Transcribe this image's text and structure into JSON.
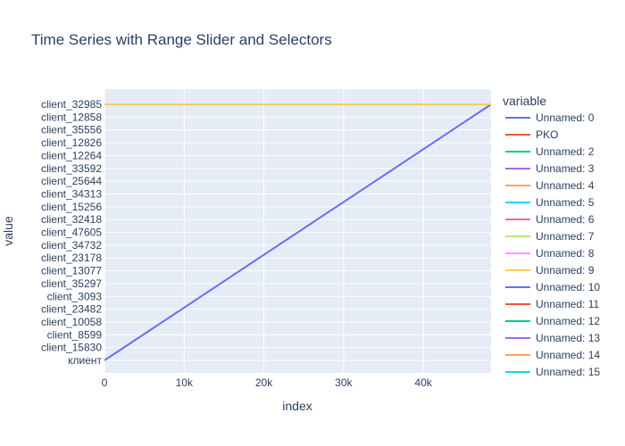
{
  "chart_data": {
    "type": "line",
    "title": "Time Series with Range Slider and Selectors",
    "xlabel": "index",
    "ylabel": "value",
    "xlim": [
      0,
      48500
    ],
    "x_ticks": [
      {
        "value": 0,
        "label": "0"
      },
      {
        "value": 10000,
        "label": "10k"
      },
      {
        "value": 20000,
        "label": "20k"
      },
      {
        "value": 30000,
        "label": "30k"
      },
      {
        "value": 40000,
        "label": "40k"
      }
    ],
    "y_categories": [
      "клиент",
      "client_15830",
      "client_8599",
      "client_10058",
      "client_23482",
      "client_3093",
      "client_35297",
      "client_13077",
      "client_23178",
      "client_34732",
      "client_47605",
      "client_32418",
      "client_15256",
      "client_34313",
      "client_25644",
      "client_33592",
      "client_12264",
      "client_12826",
      "client_35556",
      "client_12858",
      "client_32985"
    ],
    "grid": true,
    "legend": {
      "title": "variable",
      "position": "right"
    },
    "series": [
      {
        "name": "Unnamed: 0",
        "color": "#636efa",
        "x": [
          0,
          48500
        ],
        "y_index": [
          0,
          20
        ]
      },
      {
        "name": "PKO",
        "color": "#EF553B",
        "x": [
          0,
          48500
        ],
        "y_index": [
          20,
          20
        ]
      },
      {
        "name": "Unnamed: 2",
        "color": "#00cc96",
        "x": [
          0,
          48500
        ],
        "y_index": [
          20,
          20
        ]
      },
      {
        "name": "Unnamed: 3",
        "color": "#ab63fa",
        "x": [
          0,
          48500
        ],
        "y_index": [
          20,
          20
        ]
      },
      {
        "name": "Unnamed: 4",
        "color": "#FFA15A",
        "x": [
          0,
          48500
        ],
        "y_index": [
          20,
          20
        ]
      },
      {
        "name": "Unnamed: 5",
        "color": "#19d3f3",
        "x": [
          0,
          48500
        ],
        "y_index": [
          20,
          20
        ]
      },
      {
        "name": "Unnamed: 6",
        "color": "#FF6692",
        "x": [
          0,
          48500
        ],
        "y_index": [
          20,
          20
        ]
      },
      {
        "name": "Unnamed: 7",
        "color": "#B6E880",
        "x": [
          0,
          48500
        ],
        "y_index": [
          20,
          20
        ]
      },
      {
        "name": "Unnamed: 8",
        "color": "#FF97FF",
        "x": [
          0,
          48500
        ],
        "y_index": [
          20,
          20
        ]
      },
      {
        "name": "Unnamed: 9",
        "color": "#FECB52",
        "x": [
          0,
          48500
        ],
        "y_index": [
          20,
          20
        ]
      },
      {
        "name": "Unnamed: 10",
        "color": "#636efa",
        "x": [],
        "y_index": []
      },
      {
        "name": "Unnamed: 11",
        "color": "#EF553B",
        "x": [],
        "y_index": []
      },
      {
        "name": "Unnamed: 12",
        "color": "#00cc96",
        "x": [],
        "y_index": []
      },
      {
        "name": "Unnamed: 13",
        "color": "#ab63fa",
        "x": [],
        "y_index": []
      },
      {
        "name": "Unnamed: 14",
        "color": "#FFA15A",
        "x": [],
        "y_index": []
      },
      {
        "name": "Unnamed: 15",
        "color": "#19d3f3",
        "x": [],
        "y_index": []
      }
    ]
  }
}
